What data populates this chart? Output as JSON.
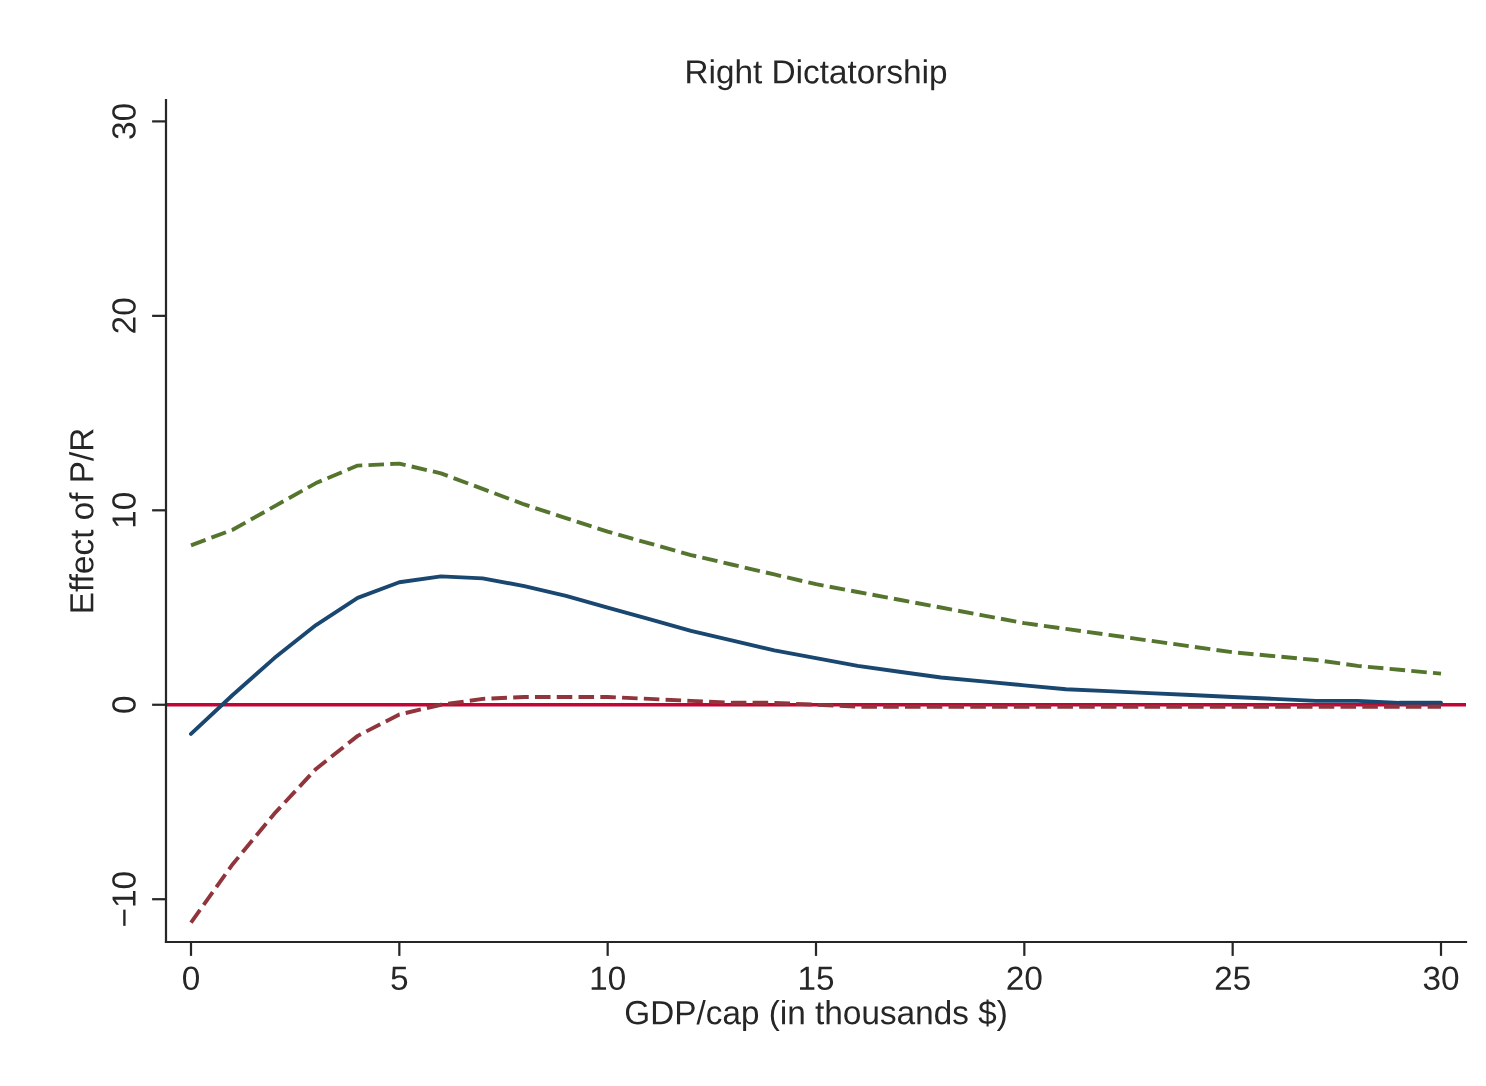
{
  "chart_data": {
    "type": "line",
    "title": "Right Dictatorship",
    "xlabel": "GDP/cap (in thousands $)",
    "ylabel": "Effect of P/R",
    "x": [
      0,
      1,
      2,
      3,
      4,
      5,
      6,
      7,
      8,
      9,
      10,
      11,
      12,
      13,
      14,
      15,
      16,
      17,
      18,
      19,
      20,
      21,
      22,
      23,
      24,
      25,
      26,
      27,
      28,
      29,
      30
    ],
    "series": [
      {
        "color": "#1a476f",
        "line_style": "solid",
        "values": [
          -1.5,
          0.5,
          2.4,
          4.1,
          5.5,
          6.3,
          6.6,
          6.5,
          6.1,
          5.6,
          5.0,
          4.4,
          3.8,
          3.3,
          2.8,
          2.4,
          2.0,
          1.7,
          1.4,
          1.2,
          1.0,
          0.8,
          0.7,
          0.6,
          0.5,
          0.4,
          0.3,
          0.2,
          0.2,
          0.1,
          0.1
        ]
      },
      {
        "color": "#55752f",
        "line_style": "dashed",
        "values": [
          8.2,
          9.0,
          10.2,
          11.4,
          12.3,
          12.4,
          11.9,
          11.1,
          10.3,
          9.6,
          8.9,
          8.3,
          7.7,
          7.2,
          6.7,
          6.2,
          5.8,
          5.4,
          5.0,
          4.6,
          4.2,
          3.9,
          3.6,
          3.3,
          3.0,
          2.7,
          2.5,
          2.3,
          2.0,
          1.8,
          1.6
        ]
      },
      {
        "color": "#90353b",
        "line_style": "dashed",
        "values": [
          -11.2,
          -8.2,
          -5.6,
          -3.3,
          -1.6,
          -0.5,
          0.0,
          0.3,
          0.4,
          0.4,
          0.4,
          0.3,
          0.2,
          0.1,
          0.1,
          0.0,
          -0.1,
          -0.1,
          -0.1,
          -0.1,
          -0.1,
          -0.1,
          -0.1,
          -0.1,
          -0.1,
          -0.1,
          -0.1,
          -0.1,
          -0.1,
          -0.1,
          -0.1
        ]
      }
    ],
    "ref_lines": [
      {
        "axis": "y",
        "value": 0,
        "color": "#c10534",
        "line_style": "solid"
      }
    ],
    "xlim": [
      -0.6,
      30.6
    ],
    "xticks": [
      0,
      5,
      10,
      15,
      20,
      25,
      30
    ],
    "ylim": [
      -12.2,
      31.1
    ],
    "yticks": [
      {
        "value": -10,
        "label": "−10"
      },
      0,
      10,
      20,
      30
    ],
    "grid": false,
    "marker": "none"
  }
}
